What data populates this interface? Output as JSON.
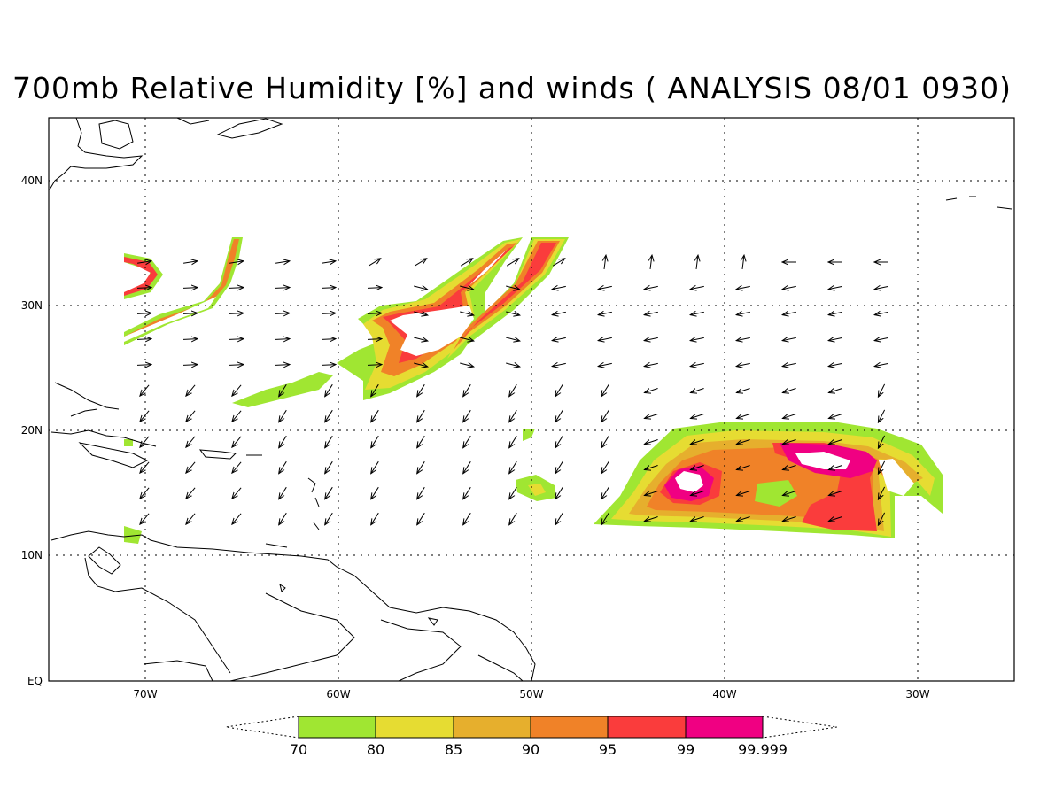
{
  "title": "700mb Relative Humidity [%] and winds ( ANALYSIS 08/01 0930)",
  "map": {
    "lon_range": [
      -75,
      -25
    ],
    "lat_range": [
      0,
      45
    ],
    "gridlines": "dotted",
    "lat_labels": [
      {
        "lat": 40,
        "text": "40N"
      },
      {
        "lat": 30,
        "text": "30N"
      },
      {
        "lat": 20,
        "text": "20N"
      },
      {
        "lat": 10,
        "text": "10N"
      },
      {
        "lat": 0,
        "text": "EQ"
      }
    ],
    "lon_labels": [
      {
        "lon": -70,
        "text": "70W"
      },
      {
        "lon": -60,
        "text": "60W"
      },
      {
        "lon": -50,
        "text": "50W"
      },
      {
        "lon": -40,
        "text": "40W"
      },
      {
        "lon": -30,
        "text": "30W"
      }
    ]
  },
  "colorbar": {
    "levels": [
      "70",
      "80",
      "85",
      "90",
      "95",
      "99",
      "99.999"
    ],
    "colors": [
      "#a0e632",
      "#e6dc32",
      "#e6af2d",
      "#f08228",
      "#fa3c3c",
      "#f00082"
    ]
  },
  "humidity_palette": [
    "#a0e632",
    "#e6dc32",
    "#e6af2d",
    "#f08228",
    "#fa3c3c",
    "#f00082",
    "#ffffff"
  ],
  "wind_field_icon": "arrow-icon"
}
